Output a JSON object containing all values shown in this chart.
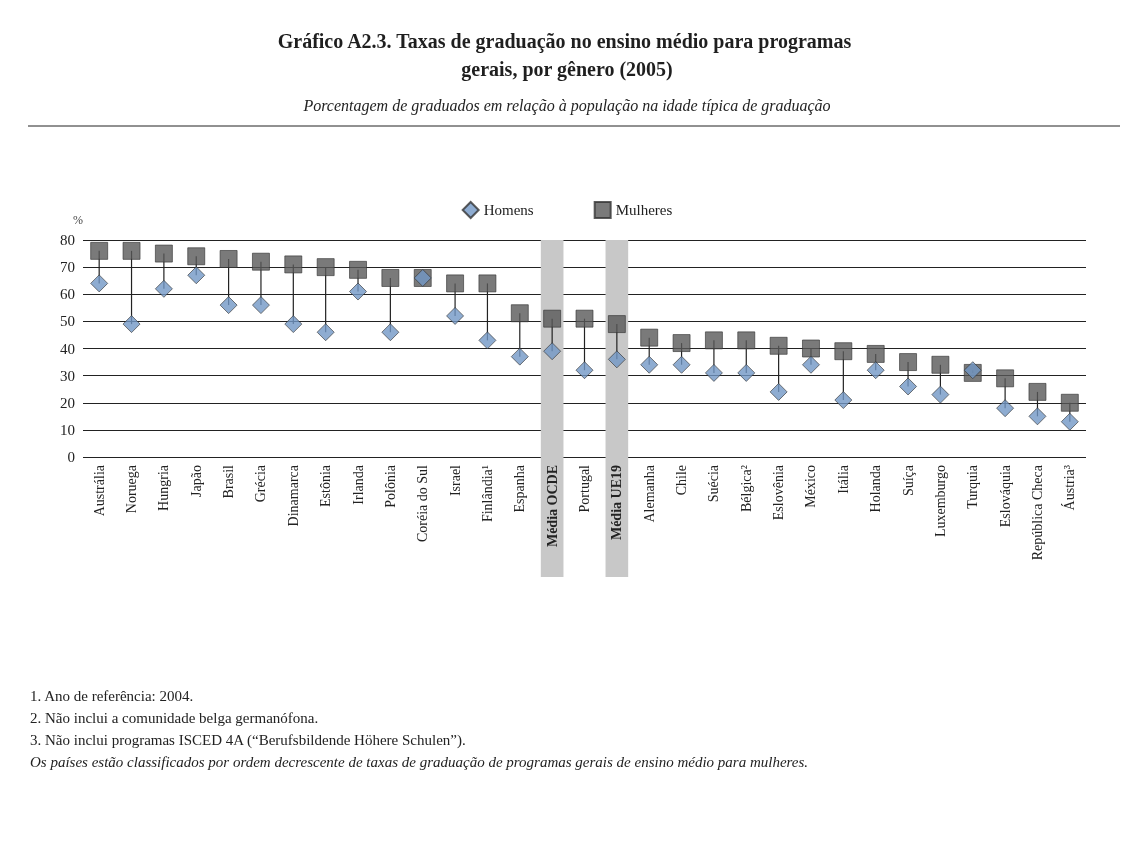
{
  "chart_data": {
    "type": "scatter",
    "title": "Gráfico A2.3. Taxas de graduação no ensino médio para programas gerais, por gênero (2005)",
    "subtitle": "Porcentagem de graduados em relação à população na idade típica de graduação",
    "ylabel": "%",
    "categories": [
      "Austrália",
      "Noruega",
      "Hungria",
      "Japão",
      "Brasil",
      "Grécia",
      "Dinamarca",
      "Estônia",
      "Irlanda",
      "Polônia",
      "Coréia do Sul",
      "Israel",
      "Finlândia¹",
      "Espanha",
      "Média OCDE",
      "Portugal",
      "Média UE19",
      "Alemanha",
      "Chile",
      "Suécia",
      "Bélgica²",
      "Eslovênia",
      "México",
      "Itália",
      "Holanda",
      "Suíça",
      "Luxemburgo",
      "Turquia",
      "Eslováquia",
      "República Checa",
      "Áustria³"
    ],
    "series": [
      {
        "name": "Homens",
        "color": "#7297c6",
        "marker": "diamond",
        "values": [
          64,
          49,
          62,
          67,
          56,
          56,
          49,
          46,
          61,
          46,
          66,
          52,
          43,
          37,
          39,
          32,
          36,
          34,
          34,
          31,
          31,
          24,
          34,
          21,
          32,
          26,
          23,
          32,
          18,
          15,
          13
        ]
      },
      {
        "name": "Mulheres",
        "color": "#595959",
        "marker": "square",
        "values": [
          76,
          76,
          75,
          74,
          73,
          72,
          71,
          70,
          69,
          66,
          66,
          64,
          64,
          53,
          51,
          51,
          49,
          44,
          42,
          43,
          43,
          41,
          40,
          39,
          38,
          35,
          34,
          31,
          29,
          24,
          20
        ]
      }
    ],
    "ylim": [
      0,
      80
    ],
    "yticks": [
      0,
      10,
      20,
      30,
      40,
      50,
      60,
      70,
      80
    ],
    "grid": "y",
    "legend": "top",
    "bands": [
      {
        "axis": "x",
        "from": "Média OCDE",
        "to": "Média OCDE",
        "color": "#c8c8c8"
      },
      {
        "axis": "x",
        "from": "Média UE19",
        "to": "Média UE19",
        "color": "#c8c8c8"
      }
    ],
    "annotations": [
      "1. Ano de referência: 2004.",
      "2. Não inclui a comunidade belga germanófona.",
      "3. Não inclui programas ISCED 4A (“Berufsbildende Höhere Schulen”).",
      "Os países estão classificados por ordem decrescente de taxas de graduação de programas gerais de ensino médio para mulheres."
    ]
  }
}
